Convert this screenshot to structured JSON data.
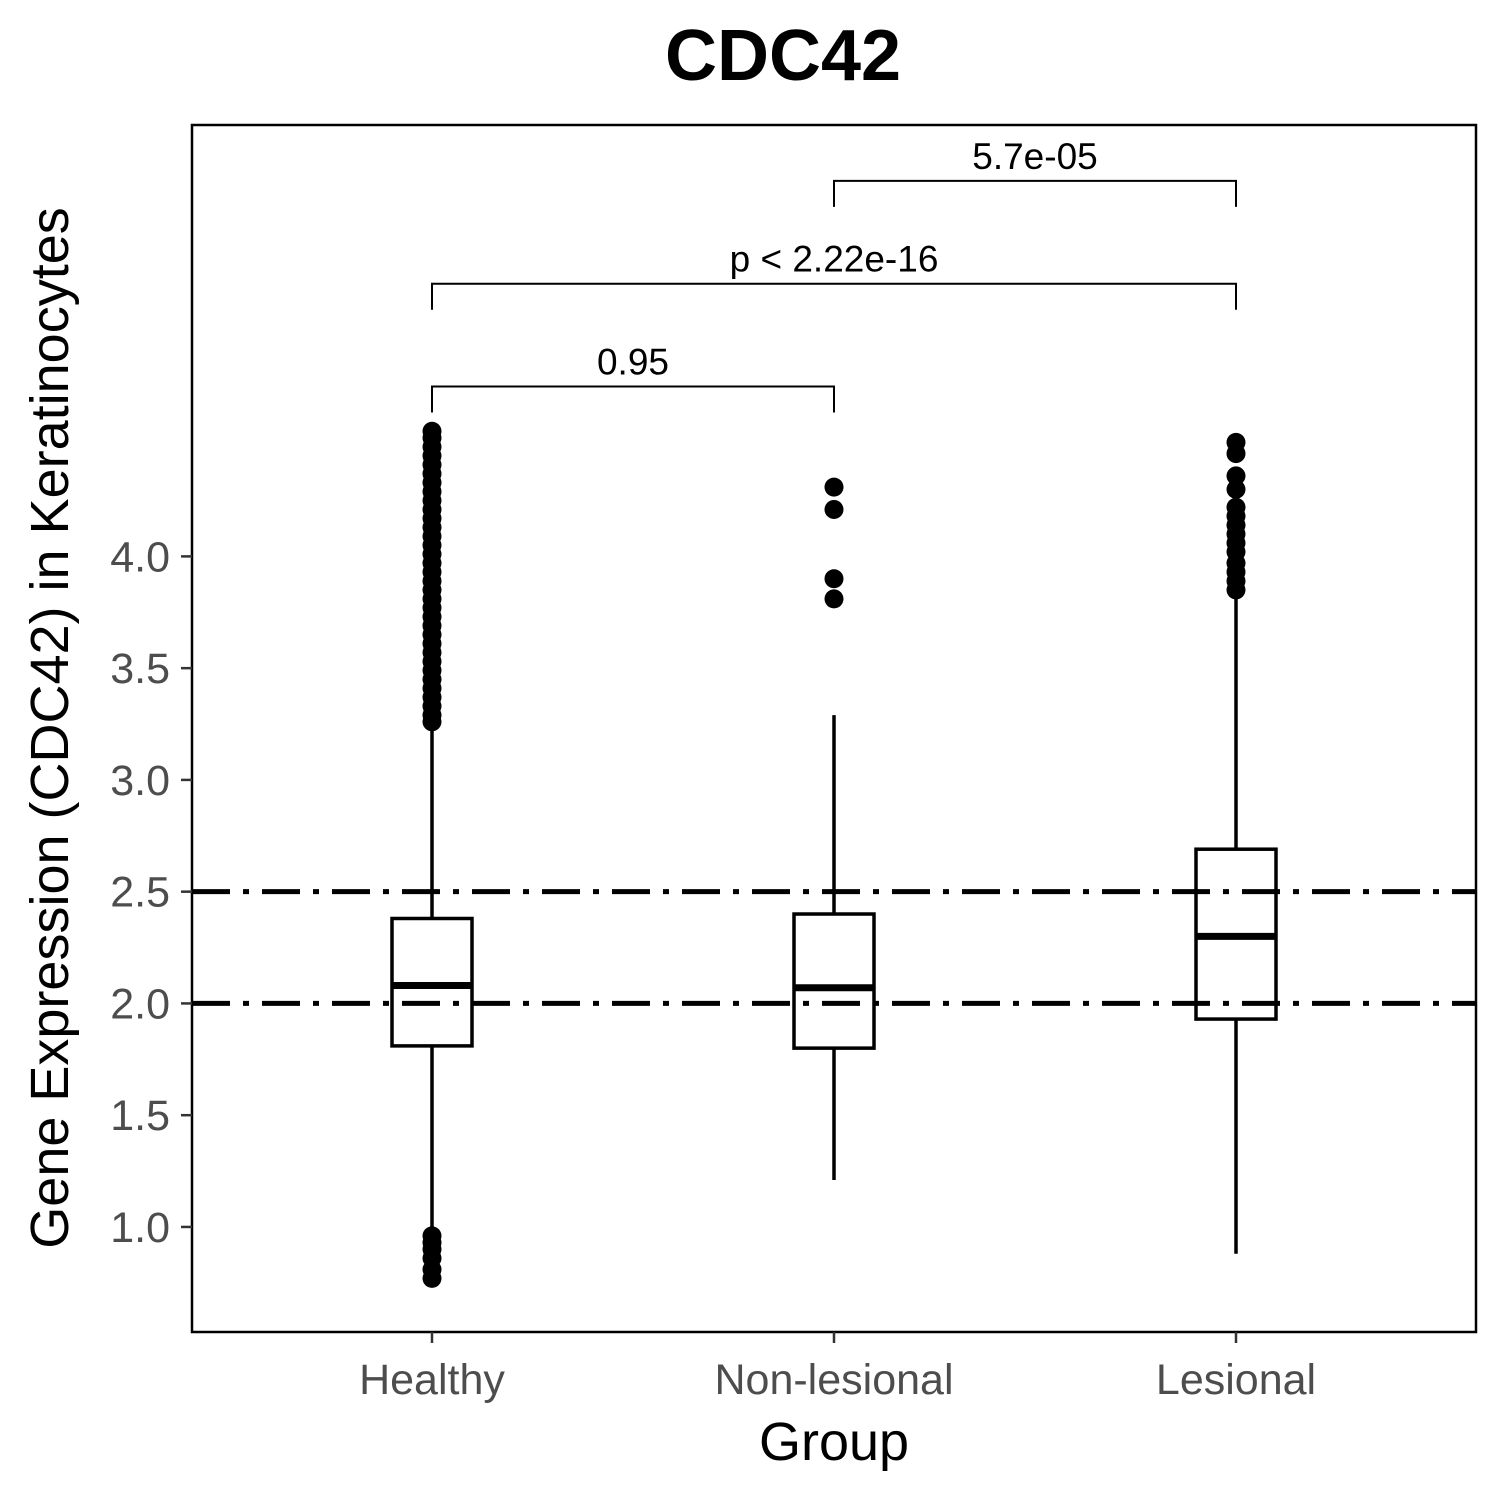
{
  "chart_data": {
    "type": "box",
    "title": "CDC42",
    "xlabel": "Group",
    "ylabel": "Gene Expression (CDC42) in Keratinocytes",
    "categories": [
      "Healthy",
      "Non-lesional",
      "Lesional"
    ],
    "y_ticks": [
      "1.0",
      "1.5",
      "2.0",
      "2.5",
      "3.0",
      "3.5",
      "4.0"
    ],
    "y_tick_values": [
      1.0,
      1.5,
      2.0,
      2.5,
      3.0,
      3.5,
      4.0
    ],
    "ylim": [
      0.53,
      5.93
    ],
    "grid": false,
    "boxes": [
      {
        "group": "Healthy",
        "whisker_low": 0.96,
        "q1": 1.81,
        "median": 2.08,
        "q3": 2.38,
        "whisker_high": 3.26,
        "outliers": [
          0.77,
          0.81,
          0.86,
          0.9,
          0.93,
          0.96,
          3.26,
          3.29,
          3.33,
          3.37,
          3.41,
          3.45,
          3.49,
          3.53,
          3.57,
          3.61,
          3.65,
          3.69,
          3.73,
          3.77,
          3.81,
          3.85,
          3.89,
          3.93,
          3.97,
          4.01,
          4.05,
          4.09,
          4.13,
          4.17,
          4.21,
          4.25,
          4.29,
          4.33,
          4.37,
          4.41,
          4.45,
          4.49,
          4.53,
          4.56
        ]
      },
      {
        "group": "Non-lesional",
        "whisker_low": 1.21,
        "q1": 1.8,
        "median": 2.07,
        "q3": 2.4,
        "whisker_high": 3.29,
        "outliers": [
          3.81,
          3.9,
          4.21,
          4.31
        ]
      },
      {
        "group": "Lesional",
        "whisker_low": 0.88,
        "q1": 1.93,
        "median": 2.3,
        "q3": 2.69,
        "whisker_high": 3.85,
        "outliers": [
          3.85,
          3.89,
          3.93,
          3.97,
          4.02,
          4.06,
          4.1,
          4.14,
          4.18,
          4.22,
          4.3,
          4.36,
          4.46,
          4.51
        ]
      }
    ],
    "reference_lines": [
      2.0,
      2.5
    ],
    "comparisons": [
      {
        "group1": "Healthy",
        "group2": "Non-lesional",
        "label": "0.95",
        "y": 4.76
      },
      {
        "group1": "Healthy",
        "group2": "Lesional",
        "label": "p < 2.22e-16",
        "y": 5.22
      },
      {
        "group1": "Non-lesional",
        "group2": "Lesional",
        "label": "5.7e-05",
        "y": 5.68
      }
    ]
  }
}
